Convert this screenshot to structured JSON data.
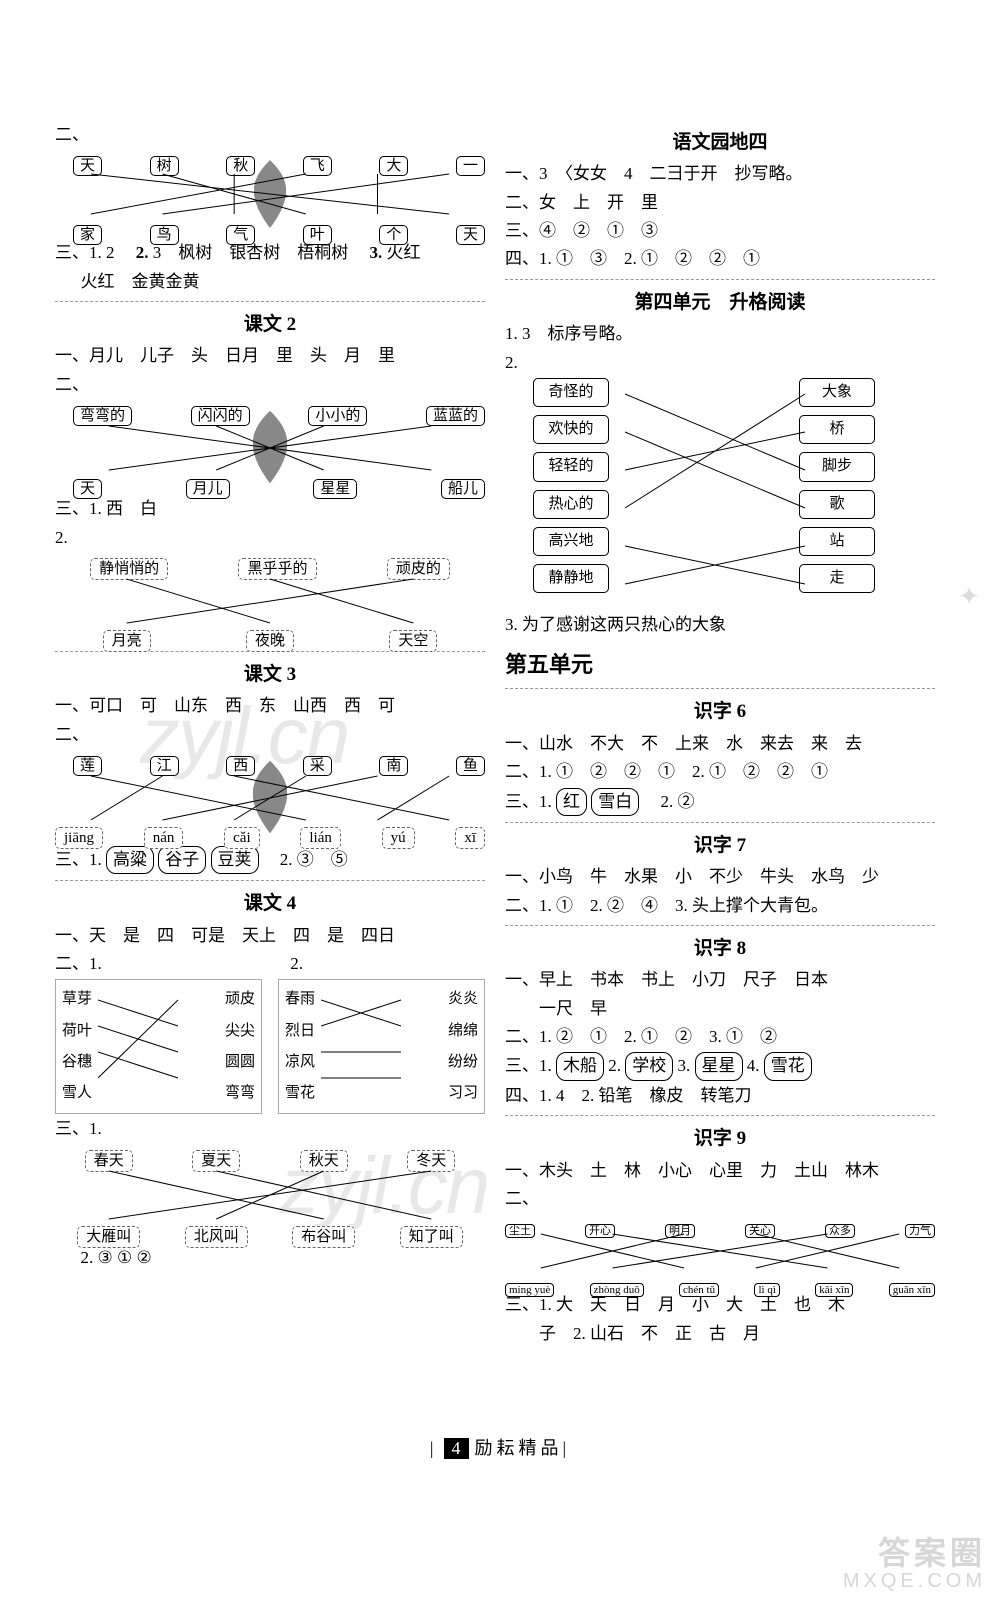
{
  "footer": {
    "page": "4",
    "label": "励耘精品"
  },
  "watermarks": {
    "wm": "zyjl.cn",
    "bw1": "答案圈",
    "bw2": "MXQE.COM"
  },
  "left": {
    "sec1": {
      "q2": "二、",
      "top": [
        "天",
        "树",
        "秋",
        "飞",
        "大",
        "一"
      ],
      "bot": [
        "家",
        "鸟",
        "气",
        "叶",
        "个",
        "天"
      ],
      "q3_label": "三、1.",
      "q3_a": "2",
      "q3_b_label": "2.",
      "q3_b": "3　枫树　银杏树　梧桐树",
      "q3_c_label": "3.",
      "q3_c": "火红",
      "q3_line2": "火红　金黄金黄"
    },
    "kw2": {
      "title": "课文 2",
      "q1": "一、月儿　儿子　头　日月　里　头　月　里",
      "q2": "二、",
      "top": [
        "弯弯的",
        "闪闪的",
        "小小的",
        "蓝蓝的"
      ],
      "bot": [
        "天",
        "月儿",
        "星星",
        "船儿"
      ],
      "q3_a": "三、1. 西　白",
      "q3_b": "2.",
      "row1": [
        "静悄悄的",
        "黑乎乎的",
        "顽皮的"
      ],
      "row2": [
        "月亮",
        "夜晚",
        "天空"
      ]
    },
    "kw3": {
      "title": "课文 3",
      "q1": "一、可口　可　山东　西　东　山西　西　可",
      "q2": "二、",
      "top": [
        "莲",
        "江",
        "西",
        "采",
        "南",
        "鱼"
      ],
      "bot": [
        "jiāng",
        "nán",
        "cǎi",
        "lián",
        "yú",
        "xī"
      ],
      "q3": "三、1.",
      "c1": "高粱",
      "c2": "谷子",
      "c3": "豆荚",
      "q3b": "2. ③　⑤"
    },
    "kw4": {
      "title": "课文 4",
      "q1": "一、天　是　四　可是　天上　四　是　四日",
      "q2a": "二、1.",
      "q2b": "2.",
      "g1l": [
        "草芽",
        "荷叶",
        "谷穗",
        "雪人"
      ],
      "g1r": [
        "顽皮",
        "尖尖",
        "圆圆",
        "弯弯"
      ],
      "g2l": [
        "春雨",
        "烈日",
        "凉风",
        "雪花"
      ],
      "g2r": [
        "炎炎",
        "绵绵",
        "纷纷",
        "习习"
      ],
      "q3": "三、1.",
      "trow": [
        "春天",
        "夏天",
        "秋天",
        "冬天"
      ],
      "brow": [
        "大雁叫",
        "北风叫",
        "布谷叫",
        "知了叫"
      ],
      "q3b": "2. ③ ① ②"
    }
  },
  "right": {
    "yd4": {
      "title": "语文园地四",
      "l1": "一、3　〈女女　4　二⺕于开　抄写略。",
      "l2": "二、女　上　开　里",
      "l3": "三、④　②　①　③",
      "l4": "四、1. ①　③　2. ①　②　②　①"
    },
    "sg4": {
      "title": "第四单元　升格阅读",
      "l1": "1. 3　标序号略。",
      "l2": "2.",
      "left": [
        "奇怪的",
        "欢快的",
        "轻轻的",
        "热心的",
        "高兴地",
        "静静地"
      ],
      "right": [
        "大象",
        "桥",
        "脚步",
        "歌",
        "站",
        "走"
      ],
      "l3": "3. 为了感谢这两只热心的大象"
    },
    "unit5": "第五单元",
    "sz6": {
      "title": "识字 6",
      "l1": "一、山水　不大　不　上来　水　来去　来　去",
      "l2": "二、1. ①　②　②　①　2. ①　②　②　①",
      "l3a": "三、1.",
      "c1": "红",
      "c2": "雪白",
      "l3b": "2. ②"
    },
    "sz7": {
      "title": "识字 7",
      "l1": "一、小鸟　牛　水果　小　不少　牛头　水鸟　少",
      "l2": "二、1. ①　2. ②　④　3. 头上撑个大青包。"
    },
    "sz8": {
      "title": "识字 8",
      "l1": "一、早上　书本　书上　小刀　尺子　日本",
      "l1b": "　　一尺　早",
      "l2": "二、1. ②　①　2. ①　②　3. ①　②",
      "l3a": "三、1.",
      "c1": "木船",
      "l3b": "2.",
      "c2": "学校",
      "l3c": "3.",
      "c3": "星星",
      "l3d": "4.",
      "c4": "雪花",
      "l4": "四、1. 4　2. 铅笔　橡皮　转笔刀"
    },
    "sz9": {
      "title": "识字 9",
      "l1": "一、木头　土　林　小心　心里　力　土山　林木",
      "q2": "二、",
      "top": [
        "尘土",
        "开心",
        "明月",
        "关心",
        "众多",
        "力气"
      ],
      "bot": [
        "míng yuè",
        "zhòng duō",
        "chén tǔ",
        "lì qì",
        "kāi xīn",
        "guān xīn"
      ],
      "l3": "三、1. 大　天　日　月　小　大　土　也　木",
      "l3b": "　　子　2. 山石　不　正　古　月"
    }
  }
}
